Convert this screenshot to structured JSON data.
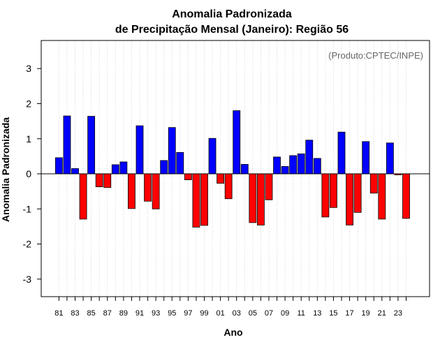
{
  "chart_data": {
    "type": "bar",
    "title": "Anomalia Padronizada",
    "subtitle": "de Precipitação Mensal (Janeiro): Região 56",
    "xlabel": "Ano",
    "ylabel": "Anomalia Padronizada",
    "credit": "(Produto:CPTEC/INPE)",
    "ylim": [
      -3.5,
      3.8
    ],
    "yticks": [
      -3,
      -2,
      -1,
      0,
      1,
      2,
      3
    ],
    "grid": "vertical-dotted",
    "positive_color": "#0000ff",
    "negative_color": "#ff0000",
    "categories": [
      "81",
      "82",
      "83",
      "84",
      "85",
      "86",
      "87",
      "88",
      "89",
      "90",
      "91",
      "92",
      "93",
      "94",
      "95",
      "96",
      "97",
      "98",
      "99",
      "00",
      "01",
      "02",
      "03",
      "04",
      "05",
      "06",
      "07",
      "08",
      "09",
      "10",
      "11",
      "12",
      "13",
      "14",
      "15",
      "16",
      "17",
      "18",
      "19",
      "20",
      "21",
      "22",
      "23",
      "24"
    ],
    "tick_labels": [
      "81",
      "83",
      "85",
      "87",
      "89",
      "91",
      "93",
      "95",
      "97",
      "99",
      "01",
      "03",
      "05",
      "07",
      "09",
      "11",
      "13",
      "15",
      "17",
      "19",
      "21",
      "23"
    ],
    "values": [
      0.46,
      1.65,
      0.15,
      -1.29,
      1.64,
      -0.37,
      -0.39,
      0.26,
      0.34,
      -0.99,
      1.37,
      -0.78,
      -1.0,
      0.38,
      1.32,
      0.61,
      -0.17,
      -1.52,
      -1.47,
      1.01,
      -0.27,
      -0.71,
      1.8,
      0.27,
      -1.39,
      -1.46,
      -0.74,
      0.48,
      0.21,
      0.52,
      0.57,
      0.96,
      0.44,
      -1.23,
      -0.96,
      1.19,
      -1.46,
      -1.1,
      0.92,
      -0.55,
      -1.29,
      0.88,
      -0.03,
      -1.27
    ]
  }
}
